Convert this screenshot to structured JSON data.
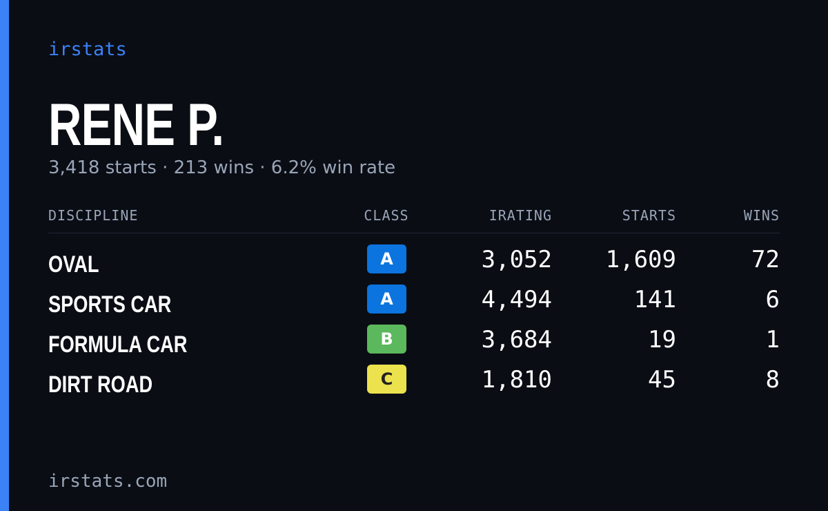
{
  "brand": "irstats",
  "name": "RENE P.",
  "summary": "3,418 starts · 213 wins · 6.2% win rate",
  "table": {
    "headers": [
      "DISCIPLINE",
      "CLASS",
      "IRATING",
      "STARTS",
      "WINS"
    ],
    "rows": [
      {
        "discipline": "OVAL",
        "class": "A",
        "class_color": "#0b74de",
        "class_text_color": "#ffffff",
        "irating": "3,052",
        "starts": "1,609",
        "wins": "72"
      },
      {
        "discipline": "SPORTS CAR",
        "class": "A",
        "class_color": "#0b74de",
        "class_text_color": "#ffffff",
        "irating": "4,494",
        "starts": "141",
        "wins": "6"
      },
      {
        "discipline": "FORMULA CAR",
        "class": "B",
        "class_color": "#5cb85c",
        "class_text_color": "#ffffff",
        "irating": "3,684",
        "starts": "19",
        "wins": "1"
      },
      {
        "discipline": "DIRT ROAD",
        "class": "C",
        "class_color": "#ece24e",
        "class_text_color": "#222222",
        "irating": "1,810",
        "starts": "45",
        "wins": "8"
      }
    ]
  },
  "footer": "irstats.com"
}
